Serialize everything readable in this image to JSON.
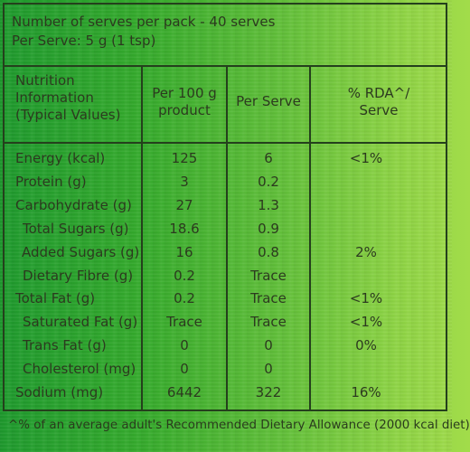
{
  "serves_per_pack": "Number of serves per pack - 40 serves",
  "per_serve": "Per Serve: 5 g (1 tsp)",
  "headers": {
    "col1": [
      "Nutrition",
      "Information",
      "(Typical Values)"
    ],
    "col2": [
      "Per 100 g",
      "product"
    ],
    "col3": "Per Serve",
    "col4": [
      "% RDA^/",
      "Serve"
    ]
  },
  "rows": [
    {
      "label": "Energy (kcal)",
      "indent": 0,
      "per100": "125",
      "perServe": "6",
      "rda": "<1%"
    },
    {
      "label": "Protein (g)",
      "indent": 0,
      "per100": "3",
      "perServe": "0.2",
      "rda": ""
    },
    {
      "label": "Carbohydrate (g)",
      "indent": 0,
      "per100": "27",
      "perServe": "1.3",
      "rda": ""
    },
    {
      "label": "Total Sugars (g)",
      "indent": 1,
      "per100": "18.6",
      "perServe": "0.9",
      "rda": ""
    },
    {
      "label": "Added Sugars (g)",
      "indent": 2,
      "per100": "16",
      "perServe": "0.8",
      "rda": "2%"
    },
    {
      "label": "Dietary Fibre (g)",
      "indent": 1,
      "per100": "0.2",
      "perServe": "Trace",
      "rda": ""
    },
    {
      "label": "Total Fat (g)",
      "indent": 0,
      "per100": "0.2",
      "perServe": "Trace",
      "rda": "<1%"
    },
    {
      "label": "Saturated Fat (g)",
      "indent": 1,
      "per100": "Trace",
      "perServe": "Trace",
      "rda": "<1%"
    },
    {
      "label": "Trans Fat (g)",
      "indent": 1,
      "per100": "0",
      "perServe": "0",
      "rda": "0%"
    },
    {
      "label": "Cholesterol (mg)",
      "indent": 1,
      "per100": "0",
      "perServe": "0",
      "rda": ""
    },
    {
      "label": "Sodium (mg)",
      "indent": 0,
      "per100": "6442",
      "perServe": "322",
      "rda": "16%"
    }
  ],
  "footnote": "^% of an average adult's Recommended Dietary Allowance (2000 kcal diet)",
  "colors": {
    "border": "#24401c",
    "text": "#2c3a1f"
  }
}
